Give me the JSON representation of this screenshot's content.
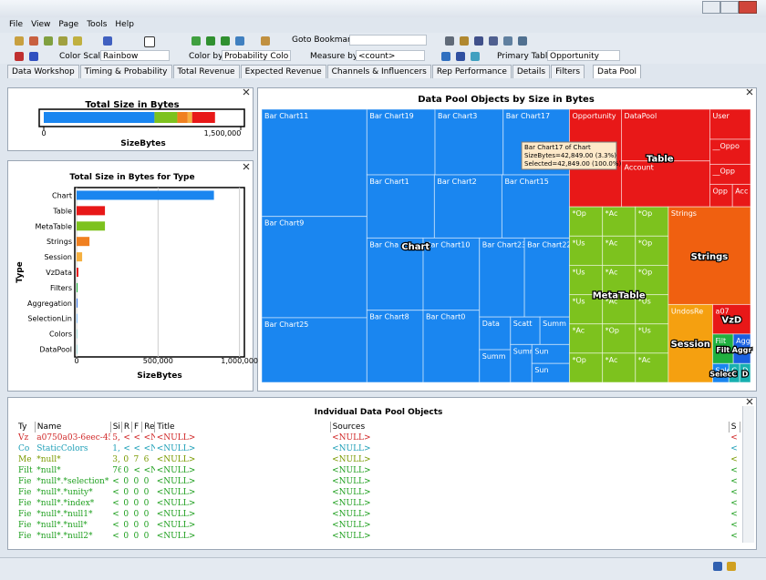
{
  "window": {
    "menu": [
      "File",
      "View",
      "Page",
      "Tools",
      "Help"
    ],
    "toolbar": {
      "goto_bookmark": "Goto Bookmark:",
      "color_scale_label": "Color Scale:",
      "color_scale": "Rainbow",
      "color_by_label": "Color by:",
      "color_by": "Probability Colo",
      "measure_by_label": "Measure by:",
      "measure_by": "<count>",
      "primary_table_label": "Primary Table:",
      "primary_table": "Opportunity"
    },
    "tabs": [
      "Data Workshop",
      "Timing & Probability",
      "Total Revenue",
      "Expected Revenue",
      "Channels & Influencers",
      "Rep Performance",
      "Details",
      "Filters",
      "Data Pool"
    ],
    "active_tab": 8
  },
  "chart_data": [
    {
      "type": "stacked-bar",
      "title": "Total Size in Bytes",
      "x_label": "SizeBytes",
      "values": [
        843000,
        174000,
        79000,
        34000,
        174000
      ],
      "colors": [
        "#1a86f0",
        "#7dc21e",
        "#f08020",
        "#f5b040",
        "#e81818"
      ],
      "xlim": [
        0,
        1500000
      ],
      "xticks": [
        0,
        {
          "value": 1500000,
          "label": "1,500,000"
        }
      ]
    },
    {
      "type": "hbar",
      "title": "Total Size in Bytes for Type",
      "x_label": "SizeBytes",
      "y_label": "Type",
      "categories": [
        "Chart",
        "Table",
        "MetaTable",
        "Strings",
        "Session",
        "VzData",
        "Filters",
        "Aggregation",
        "SelectionLin",
        "Colors",
        "DataPool"
      ],
      "values": [
        843000,
        174000,
        174000,
        79000,
        34000,
        11000,
        6000,
        5000,
        3000,
        2000,
        2000
      ],
      "colors": [
        "#1a86f0",
        "#e81818",
        "#7dc21e",
        "#f08020",
        "#f5b040",
        "#e81818",
        "#20b040",
        "#1a60e0",
        "#1a86f0",
        "#18b0b0",
        "#18b0b0"
      ],
      "xlim": [
        0,
        1030000
      ],
      "xticks": [
        0,
        {
          "value": 500000,
          "label": "500,000"
        },
        {
          "value": 1000000,
          "label": "1,000,000"
        }
      ],
      "grid": true
    },
    {
      "type": "treemap",
      "title": "Data Pool Objects by Size in Bytes",
      "groups": [
        {
          "label": "Chart",
          "color": "#1a86f0",
          "items": [
            {
              "label": "Bar Chart11",
              "value": 111000
            },
            {
              "label": "Bar Chart9",
              "value": 105000
            },
            {
              "label": "Bar Chart25",
              "value": 67000
            },
            {
              "label": "Bar Chart19",
              "value": 44000
            },
            {
              "label": "Bar Chart3",
              "value": 44000
            },
            {
              "label": "Bar Chart17",
              "value": 42849
            },
            {
              "label": "Bar Chart1",
              "value": 42000
            },
            {
              "label": "Bar Chart2",
              "value": 42000
            },
            {
              "label": "Bar Chart15",
              "value": 42000
            },
            {
              "label": "Bar Cha",
              "value": 40000
            },
            {
              "label": "Bar Chart8",
              "value": 40000
            },
            {
              "label": "Bar Chart10",
              "value": 40000
            },
            {
              "label": "Bar Chart0",
              "value": 40000
            },
            {
              "label": "Bar Chart23",
              "value": 35000
            },
            {
              "label": "Bar Chart22",
              "value": 35000
            },
            {
              "label": "Data",
              "value": 10000
            },
            {
              "label": "Summ",
              "value": 10000
            },
            {
              "label": "Scatt",
              "value": 8000
            },
            {
              "label": "Summ",
              "value": 8000
            },
            {
              "label": "Summ",
              "value": 8000
            },
            {
              "label": "Sun",
              "value": 7000
            },
            {
              "label": "Sun",
              "value": 7000
            }
          ]
        },
        {
          "label": "Table",
          "color": "#e81818",
          "items": [
            {
              "label": "Opportunity",
              "value": 50000
            },
            {
              "label": "DataPool",
              "value": 45000
            },
            {
              "label": "Account",
              "value": 40000
            },
            {
              "label": "User",
              "value": 12000
            },
            {
              "label": "__Oppo",
              "value": 10000
            },
            {
              "label": "__Opp",
              "value": 8000
            },
            {
              "label": "Opp",
              "value": 5000
            },
            {
              "label": "Acc",
              "value": 4000
            }
          ]
        },
        {
          "label": "MetaTable",
          "color": "#7dc21e",
          "items": [
            {
              "label": "*Op",
              "value": 9500
            },
            {
              "label": "*Ac",
              "value": 9500
            },
            {
              "label": "*Op",
              "value": 9500
            },
            {
              "label": "*Us",
              "value": 9500
            },
            {
              "label": "*Ac",
              "value": 9500
            },
            {
              "label": "*Op",
              "value": 9500
            },
            {
              "label": "*Us",
              "value": 9500
            },
            {
              "label": "*Ac",
              "value": 9500
            },
            {
              "label": "*Op",
              "value": 9500
            },
            {
              "label": "*Us",
              "value": 9500
            },
            {
              "label": "*Ac",
              "value": 9500
            },
            {
              "label": "*Op",
              "value": 9500
            },
            {
              "label": "*Ac",
              "value": 9500
            },
            {
              "label": "*Us",
              "value": 9500
            },
            {
              "label": "*Op",
              "value": 9500
            },
            {
              "label": "*Ac",
              "value": 9500
            },
            {
              "label": "*Us",
              "value": 9500
            },
            {
              "label": "*Ac",
              "value": 9500
            }
          ]
        },
        {
          "label": "Strings",
          "color": "#f06010",
          "items": [
            {
              "label": "Strings",
              "value": 79000
            }
          ]
        },
        {
          "label": "Session",
          "color": "#f5a010",
          "items": [
            {
              "label": "UndosRe",
              "value": 34000
            }
          ]
        },
        {
          "label": "VzD",
          "color": "#e81818",
          "items": [
            {
              "label": "a07",
              "value": 11000
            }
          ]
        },
        {
          "label": "Filt",
          "color": "#20b040",
          "items": [
            {
              "label": "Filt",
              "value": 6000
            }
          ]
        },
        {
          "label": "Aggr",
          "color": "#1a60e0",
          "items": [
            {
              "label": "Aggr",
              "value": 5000
            }
          ]
        },
        {
          "label": "Selec",
          "color": "#1a86f0",
          "items": [
            {
              "label": "Selec",
              "value": 3000
            }
          ]
        },
        {
          "label": "C",
          "color": "#18b0b0",
          "items": [
            {
              "label": "C",
              "value": 2000
            }
          ]
        },
        {
          "label": "D",
          "color": "#18b0b0",
          "items": [
            {
              "label": "D",
              "value": 2000
            }
          ]
        }
      ],
      "tooltip": [
        "Bar Chart17 of Chart",
        "SizeBytes=42,849.00 (3.3%)",
        "Selected=42,849.00 (100.0%)"
      ]
    }
  ],
  "table": {
    "title": "Indvidual Data Pool Objects",
    "columns": [
      "Ty",
      "Name",
      "Si",
      "R",
      "F",
      "Re",
      "Title",
      "Sources",
      "S"
    ],
    "rows": [
      {
        "color": "#d02828",
        "cells": [
          "Vz",
          "a0750a03-6eec-45",
          "5,",
          "<",
          "<",
          "<N",
          "<NULL>",
          "<NULL>",
          "<"
        ]
      },
      {
        "color": "#20a0b8",
        "cells": [
          "Co",
          "StaticColors",
          "1,",
          "<",
          "<",
          "<N",
          "<NULL>",
          "<NULL>",
          "<"
        ]
      },
      {
        "color": "#7a9a00",
        "cells": [
          "Me",
          "*null*",
          "3,",
          "0",
          "7",
          "6",
          "<NULL>",
          "<NULL>",
          "<"
        ]
      },
      {
        "color": "#20a020",
        "cells": [
          "Filt",
          "*null*",
          "76",
          "0",
          "<",
          "<N",
          "<NULL>",
          "<NULL>",
          "<"
        ]
      },
      {
        "color": "#20a020",
        "cells": [
          "Fie",
          "*null*.*selection*",
          "<",
          "0",
          "0",
          "0",
          "<NULL>",
          "<NULL>",
          "<"
        ]
      },
      {
        "color": "#20a020",
        "cells": [
          "Fie",
          "*null*.*unity*",
          "<",
          "0",
          "0",
          "0",
          "<NULL>",
          "<NULL>",
          "<"
        ]
      },
      {
        "color": "#20a020",
        "cells": [
          "Fie",
          "*null*.*index*",
          "<",
          "0",
          "0",
          "0",
          "<NULL>",
          "<NULL>",
          "<"
        ]
      },
      {
        "color": "#20a020",
        "cells": [
          "Fie",
          "*null*.*null1*",
          "<",
          "0",
          "0",
          "0",
          "<NULL>",
          "<NULL>",
          "<"
        ]
      },
      {
        "color": "#20a020",
        "cells": [
          "Fie",
          "*null*.*null*",
          "<",
          "0",
          "0",
          "0",
          "<NULL>",
          "<NULL>",
          "<"
        ]
      },
      {
        "color": "#20a020",
        "cells": [
          "Fie",
          "*null*.*null2*",
          "<",
          "0",
          "0",
          "0",
          "<NULL>",
          "<NULL>",
          "<"
        ]
      }
    ]
  }
}
